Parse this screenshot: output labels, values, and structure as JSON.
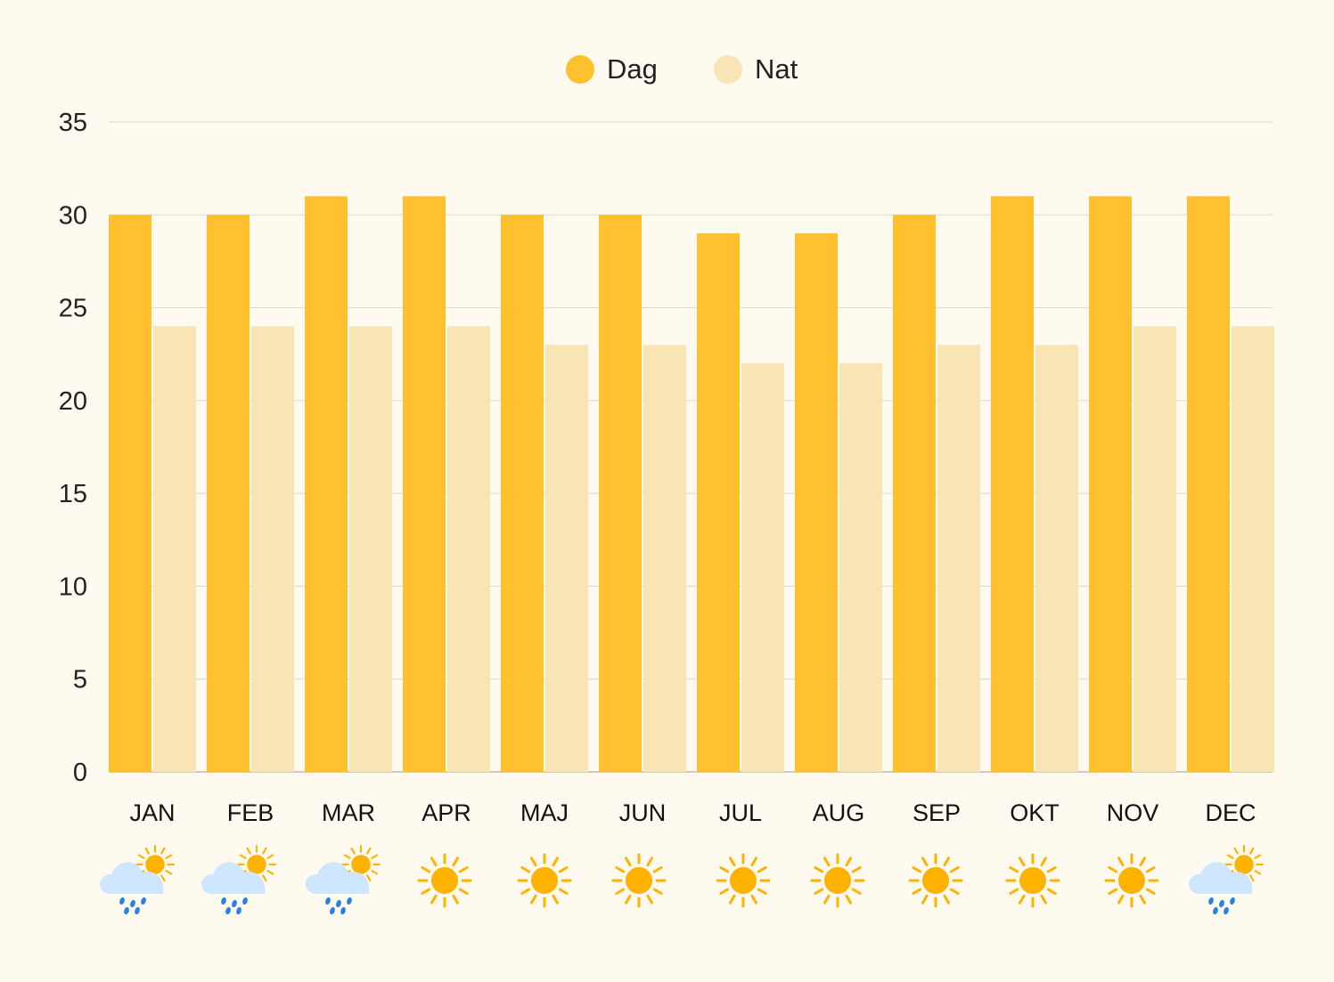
{
  "chart_data": {
    "type": "bar",
    "categories": [
      "JAN",
      "FEB",
      "MAR",
      "APR",
      "MAJ",
      "JUN",
      "JUL",
      "AUG",
      "SEP",
      "OKT",
      "NOV",
      "DEC"
    ],
    "series": [
      {
        "name": "Dag",
        "color": "#ffc130",
        "values": [
          30,
          30,
          31,
          31,
          30,
          30,
          29,
          29,
          30,
          31,
          31,
          31
        ]
      },
      {
        "name": "Nat",
        "color": "#f8e4b5",
        "values": [
          24,
          24,
          24,
          24,
          23,
          23,
          22,
          22,
          23,
          23,
          24,
          24
        ]
      }
    ],
    "weather_icons": [
      "rain-cloud-sun-icon",
      "rain-cloud-sun-icon",
      "rain-cloud-sun-icon",
      "sun-icon",
      "sun-icon",
      "sun-icon",
      "sun-icon",
      "sun-icon",
      "sun-icon",
      "sun-icon",
      "sun-icon",
      "rain-cloud-sun-icon"
    ],
    "ylim": [
      0,
      35
    ],
    "yticks": [
      0,
      5,
      10,
      15,
      20,
      25,
      30,
      35
    ],
    "grid": true,
    "legend_position": "top-center",
    "title": "",
    "xlabel": "",
    "ylabel": ""
  },
  "colors": {
    "background": "#fffaf0",
    "grid": "#dcd8d1",
    "axis": "#cfcac2",
    "text": "#222222",
    "sun": "#ffb300",
    "cloud": "#cfe6ff",
    "rain": "#2d7fe0"
  }
}
